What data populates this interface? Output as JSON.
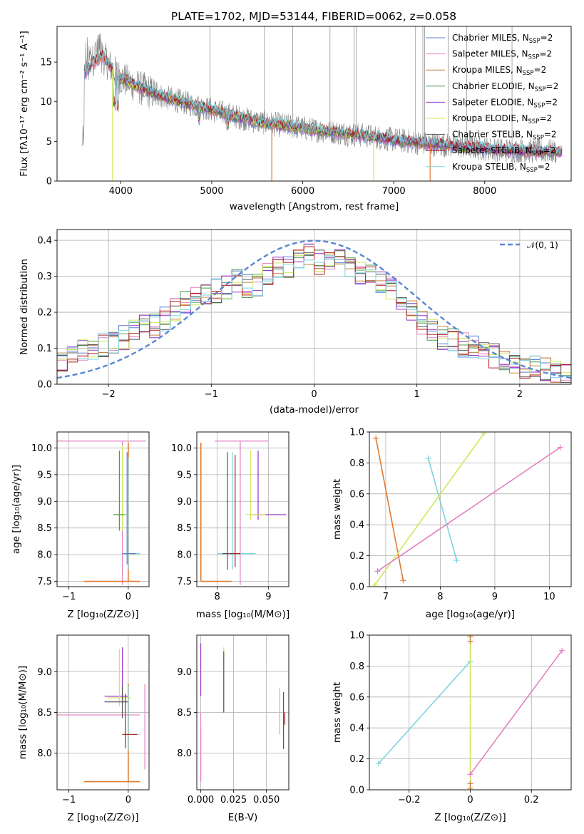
{
  "colors": {
    "chabrier_miles": "#5b7fd1",
    "salpeter_miles": "#e37fc0",
    "kroupa_miles": "#c0823a",
    "chabrier_elodie": "#4e9a4e",
    "salpeter_elodie": "#9b30c8",
    "kroupa_elodie": "#cfe85a",
    "chabrier_stelib": "#555555",
    "salpeter_stelib": "#b21c1c",
    "kroupa_stelib": "#7fd3e0",
    "orange": "#e07a2f",
    "gray": "#808080",
    "normal": "#5b86d6"
  },
  "legend": {
    "items": [
      {
        "label": "Chabrier MILES, N",
        "sub": "SSP",
        "tail": "=2",
        "color": "#5b7fd1"
      },
      {
        "label": "Salpeter MILES, N",
        "sub": "SSP",
        "tail": "=2",
        "color": "#e37fc0"
      },
      {
        "label": "Kroupa MILES, N",
        "sub": "SSP",
        "tail": "=2",
        "color": "#c0823a"
      },
      {
        "label": "Chabrier ELODIE, N",
        "sub": "SSP",
        "tail": "=2",
        "color": "#4e9a4e"
      },
      {
        "label": "Salpeter ELODIE, N",
        "sub": "SSP",
        "tail": "=2",
        "color": "#9b30c8"
      },
      {
        "label": "Kroupa ELODIE, N",
        "sub": "SSP",
        "tail": "=2",
        "color": "#cfe85a"
      },
      {
        "label": "Chabrier STELIB, N",
        "sub": "SSP",
        "tail": "=2",
        "color": "#555555"
      },
      {
        "label": "Salpeter STELIB, N",
        "sub": "SSP",
        "tail": "=2",
        "color": "#b21c1c"
      },
      {
        "label": "Kroupa STELIB, N",
        "sub": "SSP",
        "tail": "=2",
        "color": "#7fd3e0"
      }
    ],
    "normal_label": "𝒩(0, 1)"
  },
  "chart_data": [
    {
      "type": "line",
      "title": "PLATE=1702, MJD=53144, FIBERID=0062, z=0.058",
      "xlabel": "wavelength [Angstrom, rest frame]",
      "ylabel": "Flux [fλ10⁻¹⁷ erg cm⁻² s⁻¹ A⁻¹]",
      "xlim": [
        3300,
        8950
      ],
      "ylim": [
        0,
        19.5
      ],
      "xticks": [
        4000,
        5000,
        6000,
        7000,
        8000
      ],
      "yticks": [
        0,
        5,
        10,
        15
      ],
      "continuum": {
        "x": [
          3600,
          3700,
          3800,
          3900,
          4000,
          4200,
          4400,
          4600,
          4800,
          5000,
          5200,
          5500,
          5800,
          6100,
          6400,
          6700,
          7000,
          7300,
          7600,
          7900,
          8200,
          8500,
          8800
        ],
        "y": [
          13.5,
          15.0,
          15.8,
          14.2,
          13.0,
          11.8,
          10.9,
          10.2,
          9.6,
          9.0,
          8.3,
          7.5,
          7.0,
          6.5,
          6.1,
          5.7,
          5.2,
          4.8,
          4.5,
          4.2,
          3.9,
          3.8,
          3.7
        ]
      }
    },
    {
      "type": "line",
      "xlabel": "(data-model)/error",
      "ylabel": "Normed distribution",
      "xlim": [
        -2.5,
        2.5
      ],
      "ylim": [
        0,
        0.43
      ],
      "xticks": [
        -2,
        -1,
        0,
        1,
        2
      ],
      "yticks": [
        0.0,
        0.1,
        0.2,
        0.3,
        0.4
      ],
      "series": [
        {
          "name": "𝒩(0, 1)",
          "type": "normal",
          "mean": 0,
          "sigma": 1
        }
      ],
      "histogram": {
        "bin_start": -2.5,
        "bin_width": 0.1,
        "base": [
          0.06,
          0.09,
          0.1,
          0.09,
          0.11,
          0.12,
          0.13,
          0.15,
          0.16,
          0.16,
          0.18,
          0.21,
          0.23,
          0.24,
          0.25,
          0.26,
          0.27,
          0.29,
          0.27,
          0.28,
          0.31,
          0.33,
          0.32,
          0.35,
          0.36,
          0.34,
          0.35,
          0.34,
          0.33,
          0.31,
          0.3,
          0.28,
          0.26,
          0.24,
          0.2,
          0.17,
          0.15,
          0.13,
          0.12,
          0.11,
          0.1,
          0.09,
          0.08,
          0.07,
          0.06,
          0.05,
          0.05,
          0.04,
          0.03,
          0.02
        ]
      }
    },
    {
      "type": "scatter",
      "xlabel": "Z [log₁₀(Z/Z⊙)]",
      "ylabel": "age  [log₁₀(age/yr)]",
      "xlim": [
        -1.2,
        0.35
      ],
      "ylim": [
        7.4,
        10.3
      ],
      "xticks": [
        -1,
        0
      ],
      "yticks": [
        7.5,
        8.0,
        8.5,
        9.0,
        9.5,
        10.0
      ]
    },
    {
      "type": "scatter",
      "xlabel": "mass [log₁₀(M/M⊙)]",
      "xlim": [
        7.6,
        9.4
      ],
      "ylim": [
        7.4,
        10.3
      ],
      "xticks": [
        8,
        9
      ],
      "yticks": [
        7.5,
        8.0,
        8.5,
        9.0,
        9.5,
        10.0
      ]
    },
    {
      "type": "line",
      "xlabel": "age  [log₁₀(age/yr)]",
      "ylabel": "mass weight",
      "xlim": [
        6.7,
        10.4
      ],
      "ylim": [
        0,
        1.0
      ],
      "xticks": [
        7,
        8,
        9,
        10
      ],
      "yticks": [
        0.0,
        0.2,
        0.4,
        0.6,
        0.8,
        1.0
      ],
      "series": [
        {
          "name": "Kroupa MILES",
          "color": "#e07a2f",
          "x": [
            6.82,
            7.32
          ],
          "y": [
            0.96,
            0.04
          ]
        },
        {
          "name": "Chabrier MILES",
          "color": "#7fd3e0",
          "x": [
            7.78,
            8.3
          ],
          "y": [
            0.83,
            0.17
          ]
        },
        {
          "name": "Kroupa ELODIE",
          "color": "#cfe85a",
          "x": [
            6.8,
            8.8
          ],
          "y": [
            0.01,
            0.99
          ]
        },
        {
          "name": "Salpeter MILES",
          "color": "#e37fc0",
          "x": [
            6.85,
            10.2
          ],
          "y": [
            0.1,
            0.9
          ]
        }
      ]
    },
    {
      "type": "scatter",
      "xlabel": "Z [log₁₀(Z/Z⊙)]",
      "ylabel": "mass [log₁₀(M/M⊙)]",
      "xlim": [
        -1.2,
        0.35
      ],
      "ylim": [
        7.55,
        9.45
      ],
      "xticks": [
        -1,
        0
      ],
      "yticks": [
        8.0,
        8.5,
        9.0
      ]
    },
    {
      "type": "scatter",
      "xlabel": "E(B-V)",
      "xlim": [
        -0.003,
        0.067
      ],
      "ylim": [
        7.55,
        9.45
      ],
      "xticks": [
        0.0,
        0.025,
        0.05
      ],
      "xtick_labels": [
        "0.000",
        "0.025",
        "0.050"
      ],
      "yticks": [
        8.0,
        8.5,
        9.0
      ]
    },
    {
      "type": "line",
      "xlabel": "Z [log₁₀(Z/Z⊙)]",
      "ylabel": "mass weight",
      "xlim": [
        -0.33,
        0.33
      ],
      "ylim": [
        0,
        1.0
      ],
      "xticks": [
        -0.2,
        0.0,
        0.2
      ],
      "yticks": [
        0.0,
        0.2,
        0.4,
        0.6,
        0.8,
        1.0
      ],
      "series": [
        {
          "name": "Chabrier MILES",
          "color": "#7fd3e0",
          "x": [
            -0.3,
            0.0
          ],
          "y": [
            0.17,
            0.83
          ]
        },
        {
          "name": "Kroupa ELODIE",
          "color": "#cfe85a",
          "x": [
            0.0,
            0.0
          ],
          "y": [
            0.01,
            0.99
          ]
        },
        {
          "name": "Salpeter MILES",
          "color": "#e37fc0",
          "x": [
            0.0,
            0.3
          ],
          "y": [
            0.1,
            0.9
          ]
        }
      ]
    }
  ]
}
